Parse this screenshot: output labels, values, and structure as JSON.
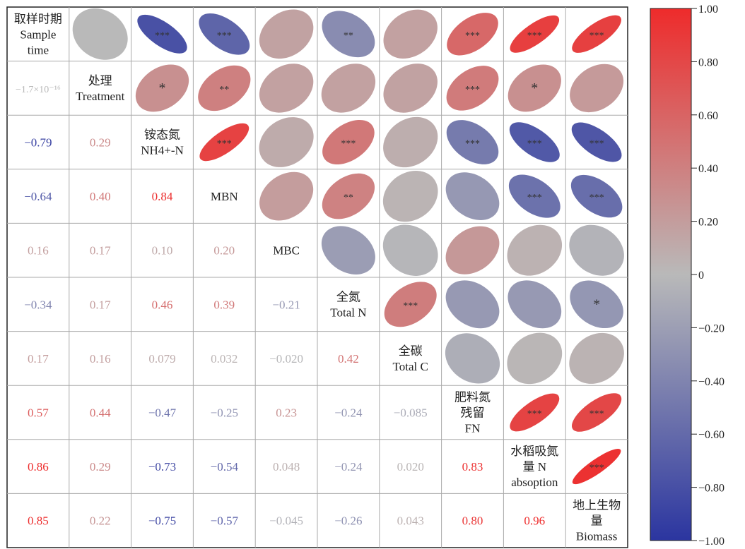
{
  "chart_data": {
    "type": "heatmap",
    "variables": [
      [
        "取样时期",
        "Sample",
        "time"
      ],
      [
        "处理",
        "Treatment"
      ],
      [
        "铵态氮",
        "NH4+-N"
      ],
      [
        "MBN"
      ],
      [
        "MBC"
      ],
      [
        "全氮",
        "Total N"
      ],
      [
        "全碳",
        "Total C"
      ],
      [
        "肥料氮",
        "残留",
        "FN"
      ],
      [
        "水稻吸氮",
        "量 N",
        "absoption"
      ],
      [
        "地上生物",
        "量",
        "Biomass"
      ]
    ],
    "lower_labels": [
      [],
      [
        "−1.7×10⁻¹⁶"
      ],
      [
        "−0.79",
        "0.29"
      ],
      [
        "−0.64",
        "0.40",
        "0.84"
      ],
      [
        "0.16",
        "0.17",
        "0.10",
        "0.20"
      ],
      [
        "−0.34",
        "0.17",
        "0.46",
        "0.39",
        "−0.21"
      ],
      [
        "0.17",
        "0.16",
        "0.079",
        "0.032",
        "−0.020",
        "0.42"
      ],
      [
        "0.57",
        "0.44",
        "−0.47",
        "−0.25",
        "0.23",
        "−0.24",
        "−0.085"
      ],
      [
        "0.86",
        "0.29",
        "−0.73",
        "−0.54",
        "0.048",
        "−0.24",
        "0.020",
        "0.83"
      ],
      [
        "0.85",
        "0.22",
        "−0.75",
        "−0.57",
        "−0.045",
        "−0.26",
        "0.043",
        "0.80",
        "0.96"
      ]
    ],
    "upper_signif": [
      [
        "",
        "",
        "***",
        "***",
        "",
        "**",
        "",
        "***",
        "***",
        "***"
      ],
      [
        "",
        "",
        "*",
        "**",
        "",
        "",
        "",
        "***",
        "*",
        ""
      ],
      [
        "",
        "",
        "",
        "***",
        "",
        "***",
        "",
        "***",
        "***",
        "***"
      ],
      [
        "",
        "",
        "",
        "",
        "",
        "**",
        "",
        "",
        "***",
        "***"
      ],
      [
        "",
        "",
        "",
        "",
        "",
        "",
        "",
        "",
        "",
        ""
      ],
      [
        "",
        "",
        "",
        "",
        "",
        "",
        "***",
        "",
        "",
        "*"
      ],
      [
        "",
        "",
        "",
        "",
        "",
        "",
        "",
        "",
        "",
        ""
      ],
      [
        "",
        "",
        "",
        "",
        "",
        "",
        "",
        "",
        "***",
        "***"
      ],
      [
        "",
        "",
        "",
        "",
        "",
        "",
        "",
        "",
        "",
        "***"
      ],
      [
        "",
        "",
        "",
        "",
        "",
        "",
        "",
        "",
        "",
        ""
      ]
    ],
    "color_scale": {
      "low": "#2b35a0",
      "mid": "#b9b9b9",
      "high": "#ee2b2b",
      "range": [
        -1,
        1
      ]
    },
    "colorbar_ticks": [
      "1.00",
      "0.80",
      "0.60",
      "0.40",
      "0.20",
      "0",
      "−0.20",
      "−0.40",
      "−0.60",
      "−0.80",
      "−1.00"
    ]
  }
}
